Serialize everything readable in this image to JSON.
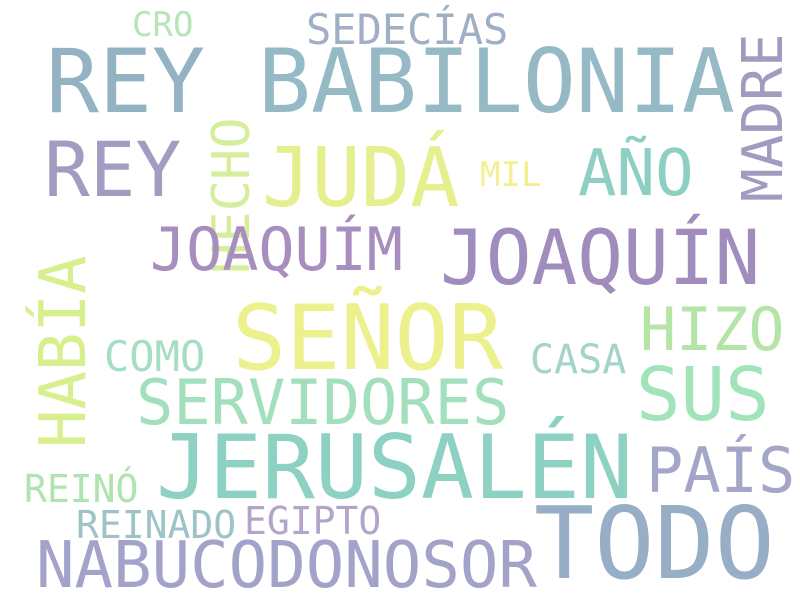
{
  "words": [
    {
      "text": "BABILONIA",
      "color": "#96b9c6"
    },
    {
      "text": "REY",
      "color": "#93b3c3"
    },
    {
      "text": "REY",
      "color": "#a39bc0"
    },
    {
      "text": "SEDECÍAS",
      "color": "#9fb0c4"
    },
    {
      "text": "CRO",
      "color": "#b7e5b8"
    },
    {
      "text": "HECHO",
      "color": "#d4ee9c"
    },
    {
      "text": "MADRE",
      "color": "#a09cbf"
    },
    {
      "text": "JUDÁ",
      "color": "#e5ef8d"
    },
    {
      "text": "MIL",
      "color": "#f3f091"
    },
    {
      "text": "AÑO",
      "color": "#8ecfc3"
    },
    {
      "text": "JOAQUÍM",
      "color": "#a88ebe"
    },
    {
      "text": "JOAQUÍN",
      "color": "#a08cbd"
    },
    {
      "text": "HABÍA",
      "color": "#d8ef8e"
    },
    {
      "text": "SEÑOR",
      "color": "#ecf18e"
    },
    {
      "text": "HIZO",
      "color": "#b5e4a7"
    },
    {
      "text": "COMO",
      "color": "#a5dec2"
    },
    {
      "text": "CASA",
      "color": "#a5d2c9"
    },
    {
      "text": "SUS",
      "color": "#a2e4ba"
    },
    {
      "text": "SERVIDORES",
      "color": "#a2dfbd"
    },
    {
      "text": "JERUSALÉN",
      "color": "#8dd1c2"
    },
    {
      "text": "PAÍS",
      "color": "#a4a6c8"
    },
    {
      "text": "REINÓ",
      "color": "#afe3b0"
    },
    {
      "text": "REINADO",
      "color": "#9ec3c7"
    },
    {
      "text": "EGIPTO",
      "color": "#b3a5c9"
    },
    {
      "text": "TODO",
      "color": "#98adc6"
    },
    {
      "text": "NABUCODONOSOR",
      "color": "#a3a2c8"
    }
  ]
}
